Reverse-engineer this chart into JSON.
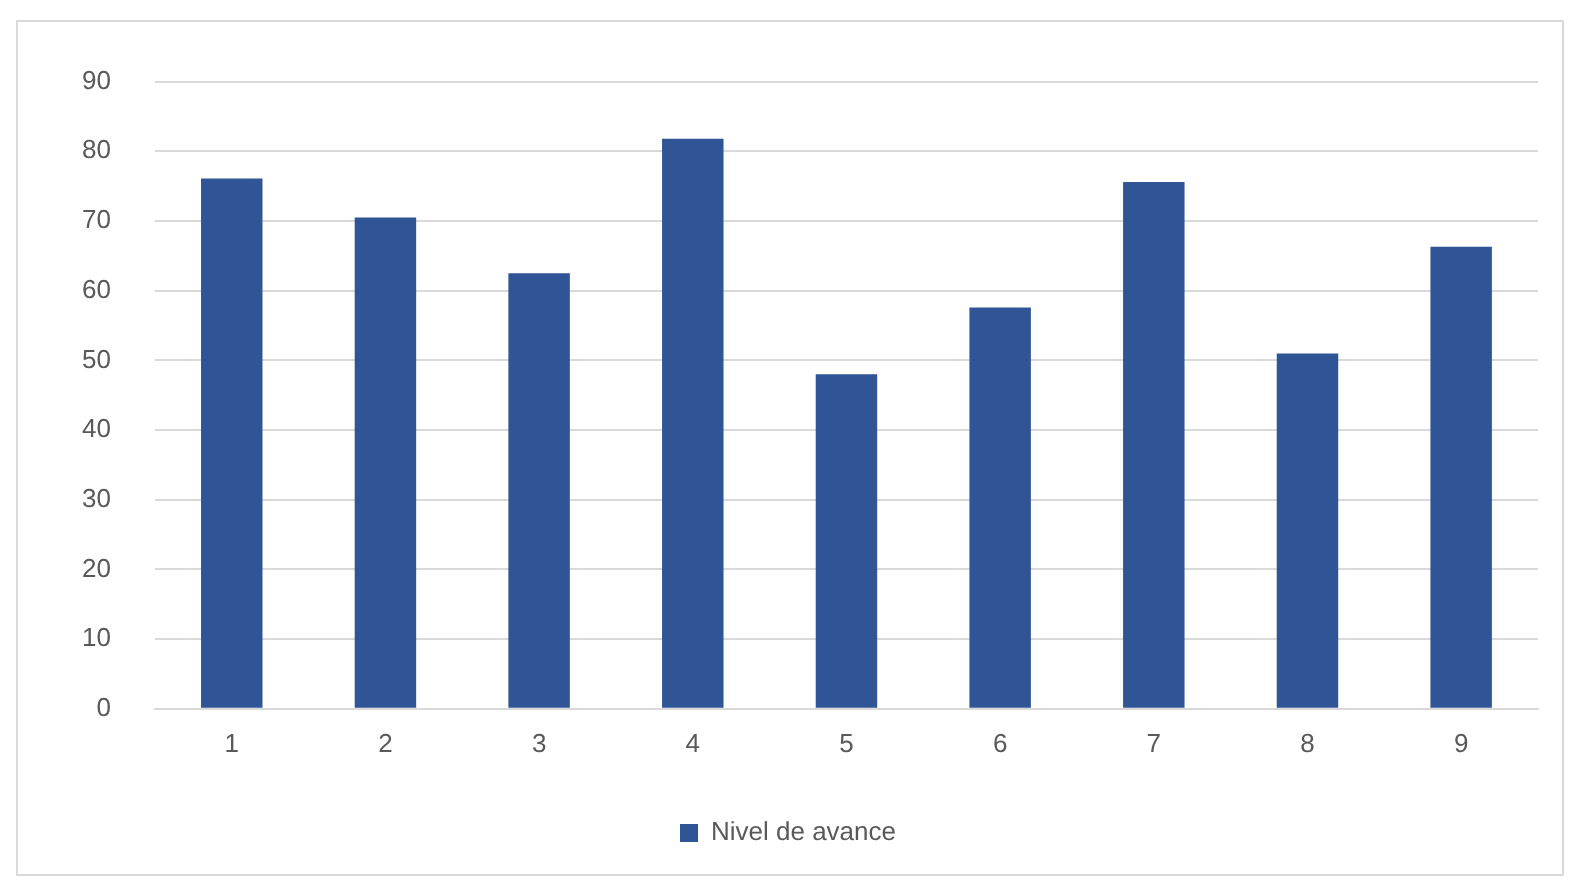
{
  "chart_data": {
    "type": "bar",
    "categories": [
      "1",
      "2",
      "3",
      "4",
      "5",
      "6",
      "7",
      "8",
      "9"
    ],
    "series": [
      {
        "name": "Nivel de avance",
        "color": "#2f5597",
        "values": [
          76.1,
          70.5,
          62.5,
          81.8,
          48.0,
          57.6,
          75.6,
          51.0,
          66.3
        ]
      }
    ],
    "ylim": [
      0,
      90
    ],
    "yticks": [
      0,
      10,
      20,
      30,
      40,
      50,
      60,
      70,
      80,
      90
    ],
    "grid": "y",
    "legend": "bottom"
  }
}
